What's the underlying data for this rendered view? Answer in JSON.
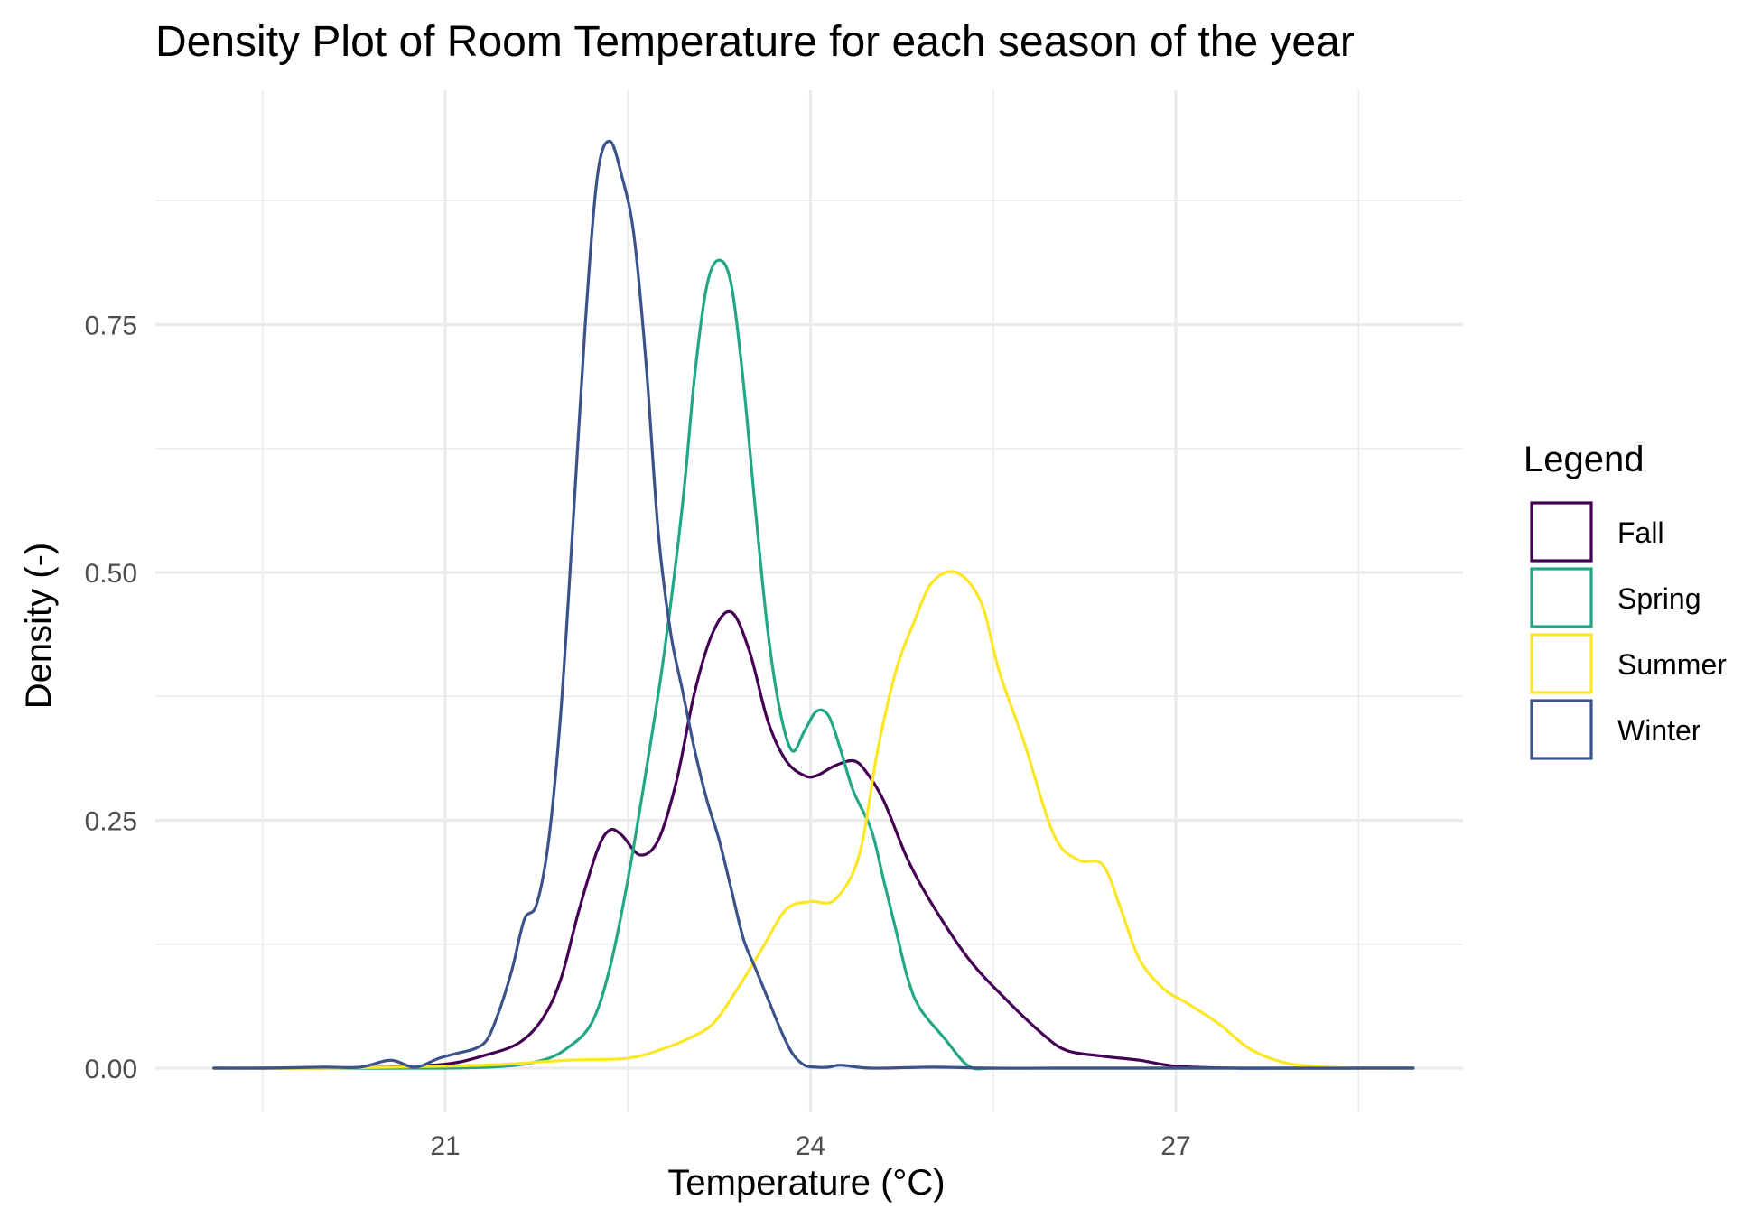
{
  "chart_data": {
    "type": "line",
    "title": "Density Plot of Room Temperature for each season of the year",
    "xlabel": "Temperature (°C)",
    "ylabel": "Density (-)",
    "xlim": [
      18.6,
      28.6
    ],
    "ylim": [
      -0.045,
      1.0
    ],
    "x_ticks": [
      21,
      24,
      27
    ],
    "x_tick_labels": [
      "21",
      "24",
      "27"
    ],
    "x_minor_ticks": [
      19.5,
      22.5,
      25.5,
      28.5
    ],
    "y_ticks": [
      0,
      0.25,
      0.5,
      0.75
    ],
    "y_tick_labels": [
      "0.00",
      "0.25",
      "0.50",
      "0.75"
    ],
    "y_minor_ticks": [
      0.125,
      0.375,
      0.625,
      0.875
    ],
    "grid": true,
    "legend": {
      "title": "Legend",
      "position": "right"
    },
    "series": [
      {
        "name": "Fall",
        "color": "#440154",
        "x": [
          19.1,
          19.5,
          20.0,
          20.5,
          21.0,
          21.3,
          21.6,
          21.8,
          21.95,
          22.1,
          22.25,
          22.35,
          22.45,
          22.6,
          22.75,
          22.9,
          23.05,
          23.2,
          23.35,
          23.5,
          23.65,
          23.8,
          23.95,
          24.05,
          24.2,
          24.35,
          24.45,
          24.6,
          24.8,
          25.0,
          25.3,
          25.6,
          25.9,
          26.1,
          26.4,
          26.7,
          27.0,
          27.5,
          28.0,
          28.5,
          28.95
        ],
        "y": [
          0.0,
          0.0,
          0.0,
          0.001,
          0.004,
          0.012,
          0.025,
          0.05,
          0.09,
          0.16,
          0.22,
          0.24,
          0.235,
          0.215,
          0.23,
          0.29,
          0.38,
          0.44,
          0.46,
          0.42,
          0.35,
          0.31,
          0.295,
          0.295,
          0.305,
          0.31,
          0.3,
          0.27,
          0.21,
          0.165,
          0.11,
          0.07,
          0.035,
          0.018,
          0.012,
          0.008,
          0.002,
          0.0,
          0.0,
          0.0,
          0.0
        ]
      },
      {
        "name": "Spring",
        "color": "#22a884",
        "x": [
          19.1,
          20.0,
          21.0,
          21.5,
          21.8,
          22.0,
          22.2,
          22.35,
          22.5,
          22.65,
          22.8,
          22.95,
          23.05,
          23.15,
          23.25,
          23.35,
          23.45,
          23.55,
          23.65,
          23.75,
          23.85,
          23.95,
          24.05,
          24.15,
          24.25,
          24.35,
          24.5,
          24.6,
          24.7,
          24.8,
          24.9,
          25.1,
          25.3,
          25.5,
          26.0,
          27.0,
          28.0,
          28.95
        ],
        "y": [
          0.0,
          0.0,
          0.0,
          0.002,
          0.008,
          0.02,
          0.045,
          0.1,
          0.19,
          0.3,
          0.42,
          0.57,
          0.7,
          0.79,
          0.815,
          0.79,
          0.69,
          0.56,
          0.44,
          0.36,
          0.32,
          0.34,
          0.36,
          0.355,
          0.32,
          0.28,
          0.24,
          0.19,
          0.14,
          0.09,
          0.06,
          0.03,
          0.002,
          0.0,
          0.0,
          0.0,
          0.0,
          0.0
        ]
      },
      {
        "name": "Summer",
        "color": "#fde725",
        "x": [
          19.1,
          20.0,
          21.0,
          21.5,
          22.0,
          22.5,
          22.8,
          23.0,
          23.2,
          23.4,
          23.6,
          23.8,
          24.0,
          24.2,
          24.4,
          24.55,
          24.7,
          24.85,
          25.0,
          25.2,
          25.4,
          25.55,
          25.75,
          26.0,
          26.2,
          26.4,
          26.55,
          26.7,
          26.9,
          27.1,
          27.35,
          27.6,
          27.85,
          28.1,
          28.5,
          28.95
        ],
        "y": [
          0.0,
          0.0,
          0.002,
          0.004,
          0.008,
          0.01,
          0.02,
          0.03,
          0.045,
          0.08,
          0.12,
          0.16,
          0.168,
          0.17,
          0.215,
          0.32,
          0.4,
          0.45,
          0.49,
          0.5,
          0.47,
          0.4,
          0.33,
          0.235,
          0.21,
          0.205,
          0.16,
          0.11,
          0.08,
          0.065,
          0.045,
          0.02,
          0.007,
          0.002,
          0.0,
          0.0
        ]
      },
      {
        "name": "Winter",
        "color": "#3b528b",
        "x": [
          19.1,
          19.5,
          20.0,
          20.3,
          20.55,
          20.75,
          20.95,
          21.1,
          21.25,
          21.35,
          21.45,
          21.55,
          21.65,
          21.75,
          21.85,
          21.95,
          22.05,
          22.15,
          22.25,
          22.35,
          22.45,
          22.55,
          22.65,
          22.75,
          22.85,
          22.95,
          23.05,
          23.15,
          23.25,
          23.35,
          23.45,
          23.55,
          23.65,
          23.75,
          23.85,
          23.95,
          24.05,
          24.15,
          24.25,
          24.5,
          25.0,
          25.5,
          26.0,
          27.0,
          28.0,
          28.95
        ],
        "y": [
          0.0,
          0.0,
          0.001,
          0.001,
          0.008,
          0.001,
          0.01,
          0.015,
          0.02,
          0.03,
          0.06,
          0.1,
          0.15,
          0.165,
          0.23,
          0.36,
          0.55,
          0.75,
          0.9,
          0.935,
          0.9,
          0.84,
          0.71,
          0.54,
          0.44,
          0.38,
          0.32,
          0.27,
          0.23,
          0.18,
          0.13,
          0.1,
          0.07,
          0.04,
          0.015,
          0.003,
          0.001,
          0.001,
          0.003,
          0.0,
          0.001,
          0.0,
          0.0,
          0.0,
          0.0,
          0.0
        ]
      }
    ]
  }
}
